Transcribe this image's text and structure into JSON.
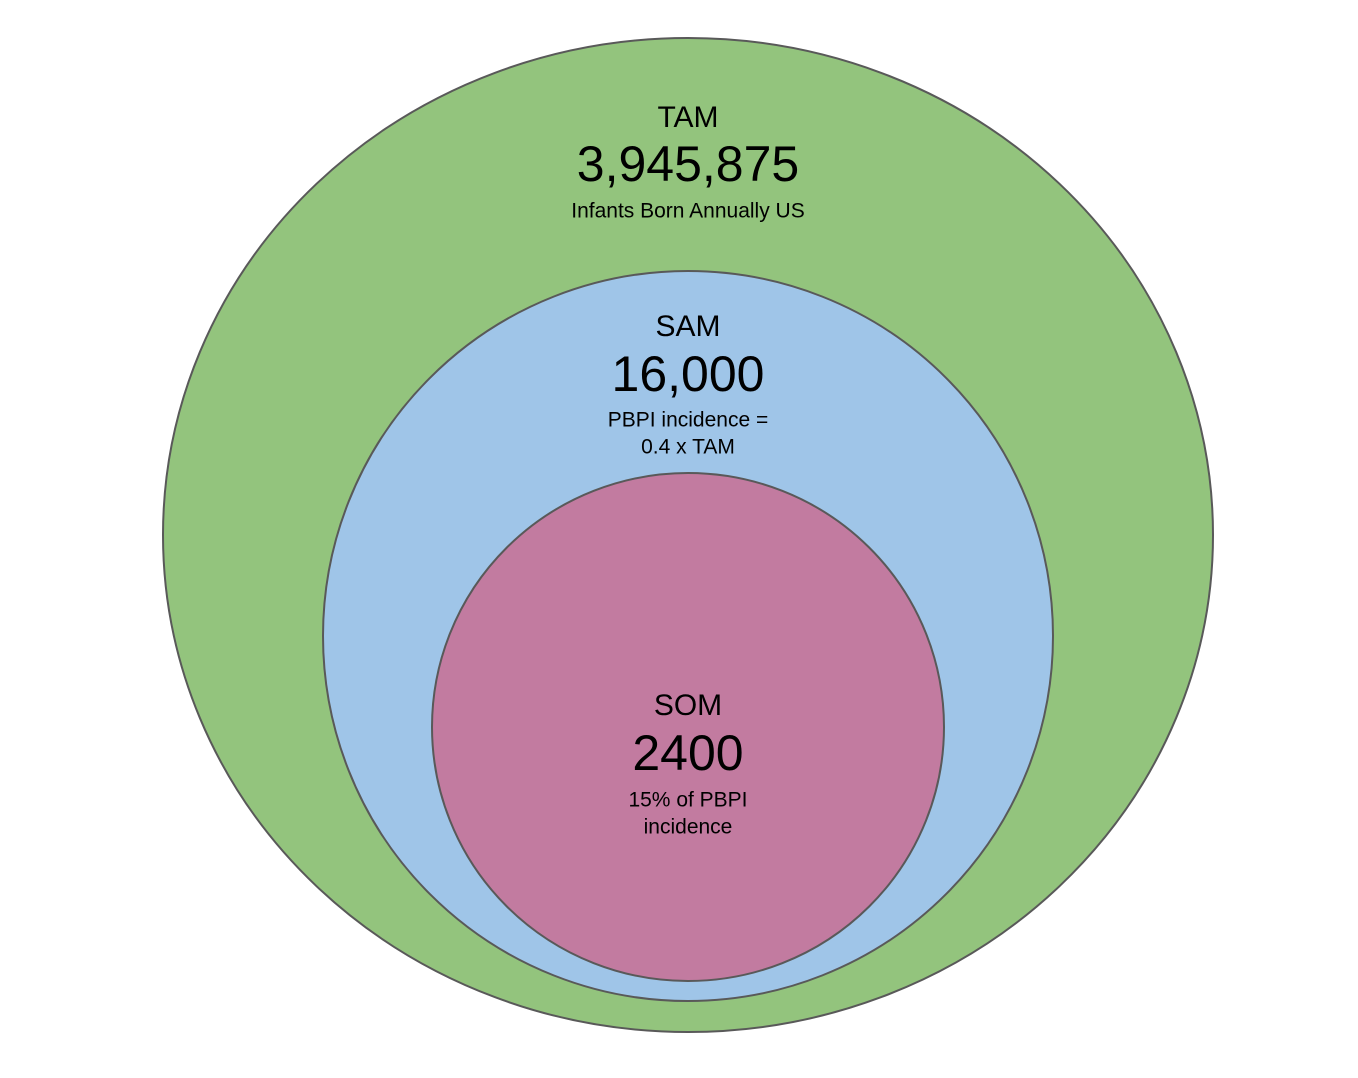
{
  "nodes": [
    {
      "label": "TAM",
      "value": "3,945,875",
      "description": [
        "Infants Born Annually US"
      ]
    },
    {
      "label": "SAM",
      "value": "16,000",
      "description": [
        "PBPI incidence =",
        "0.4 x TAM"
      ]
    },
    {
      "label": "SOM",
      "value": "2400",
      "description": [
        "15% of PBPI",
        "incidence"
      ]
    }
  ]
}
